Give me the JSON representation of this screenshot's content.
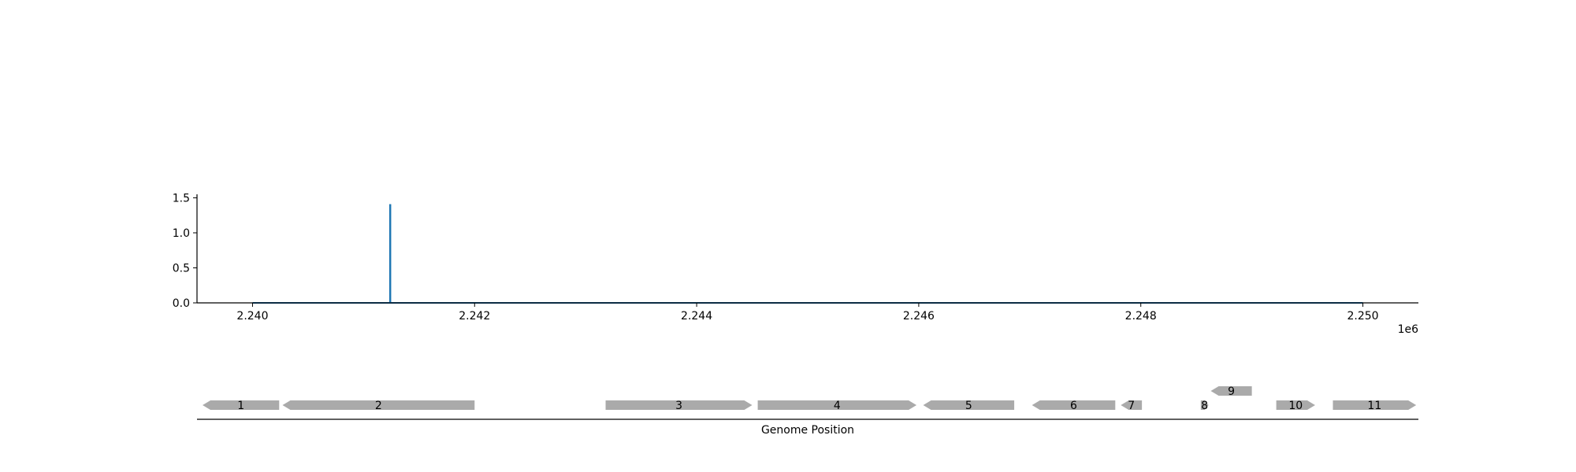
{
  "chart_data": [
    {
      "type": "line",
      "title": "",
      "xlabel": "",
      "ylabel": "",
      "x_offset_label": "1e6",
      "xlim": [
        2.2395,
        2.2505
      ],
      "ylim": [
        0.0,
        1.55
      ],
      "x_ticks": [
        {
          "value": 2.24,
          "label": "2.240"
        },
        {
          "value": 2.242,
          "label": "2.242"
        },
        {
          "value": 2.244,
          "label": "2.244"
        },
        {
          "value": 2.246,
          "label": "2.246"
        },
        {
          "value": 2.248,
          "label": "2.248"
        },
        {
          "value": 2.25,
          "label": "2.250"
        }
      ],
      "y_ticks": [
        {
          "value": 0.0,
          "label": "0.0"
        },
        {
          "value": 0.5,
          "label": "0.5"
        },
        {
          "value": 1.0,
          "label": "1.0"
        },
        {
          "value": 1.5,
          "label": "1.5"
        }
      ],
      "grid": false,
      "color": "#1f77b4",
      "baseline": {
        "x_start": 2.24,
        "x_end": 2.25,
        "y": 0.0
      },
      "peaks": [
        {
          "x": 2.24124,
          "y": 1.41
        }
      ]
    },
    {
      "type": "gene_track",
      "xlabel": "Genome Position",
      "xlim": [
        2.2395,
        2.2505
      ],
      "color": "#aaaaaa",
      "genes": [
        {
          "label": "1",
          "start": 2.23955,
          "end": 2.24024,
          "strand": "-",
          "lane": 0
        },
        {
          "label": "2",
          "start": 2.24027,
          "end": 2.242,
          "strand": "-",
          "lane": 0
        },
        {
          "label": "3",
          "start": 2.24318,
          "end": 2.2445,
          "strand": "+",
          "lane": 0
        },
        {
          "label": "4",
          "start": 2.24455,
          "end": 2.24598,
          "strand": "+",
          "lane": 0
        },
        {
          "label": "5",
          "start": 2.24604,
          "end": 2.24686,
          "strand": "-",
          "lane": 0
        },
        {
          "label": "6",
          "start": 2.24702,
          "end": 2.24777,
          "strand": "-",
          "lane": 0
        },
        {
          "label": "7",
          "start": 2.24782,
          "end": 2.24801,
          "strand": "-",
          "lane": 0
        },
        {
          "label": "8",
          "start": 2.24854,
          "end": 2.24861,
          "strand": "+",
          "lane": 0
        },
        {
          "label": "9",
          "start": 2.24863,
          "end": 2.249,
          "strand": "-",
          "lane": 1
        },
        {
          "label": "10",
          "start": 2.24922,
          "end": 2.24957,
          "strand": "+",
          "lane": 0
        },
        {
          "label": "11",
          "start": 2.24973,
          "end": 2.25048,
          "strand": "+",
          "lane": 0
        }
      ]
    }
  ]
}
